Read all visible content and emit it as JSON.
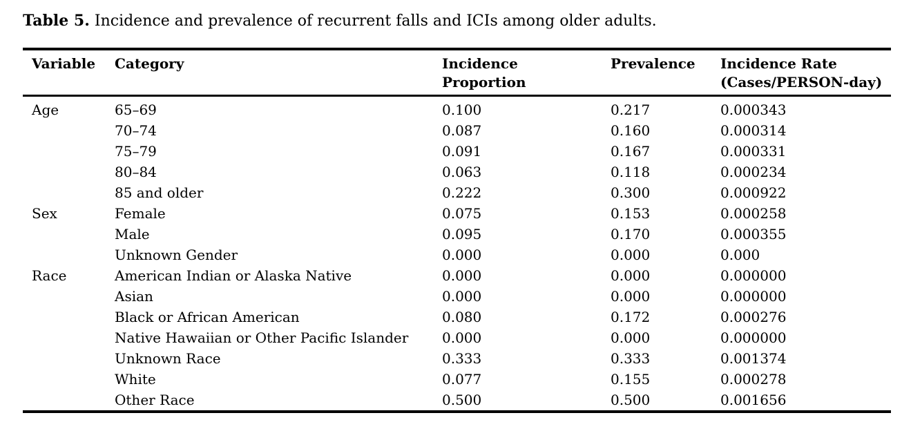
{
  "caption": {
    "label": "Table 5.",
    "text": " Incidence and prevalence of recurrent falls and ICIs among older adults."
  },
  "table": {
    "headers": {
      "variable": "Variable",
      "category": "Category",
      "incidence_proportion": "Incidence\nProportion",
      "prevalence": "Prevalence",
      "incidence_rate": "Incidence Rate\n(Cases/PERSON-day)"
    },
    "rows": [
      {
        "variable": "Age",
        "category": "65–69",
        "incidence_proportion": "0.100",
        "prevalence": "0.217",
        "incidence_rate": "0.000343"
      },
      {
        "variable": "",
        "category": "70–74",
        "incidence_proportion": "0.087",
        "prevalence": "0.160",
        "incidence_rate": "0.000314"
      },
      {
        "variable": "",
        "category": "75–79",
        "incidence_proportion": "0.091",
        "prevalence": "0.167",
        "incidence_rate": "0.000331"
      },
      {
        "variable": "",
        "category": "80–84",
        "incidence_proportion": "0.063",
        "prevalence": "0.118",
        "incidence_rate": "0.000234"
      },
      {
        "variable": "",
        "category": "85 and older",
        "incidence_proportion": "0.222",
        "prevalence": "0.300",
        "incidence_rate": "0.000922"
      },
      {
        "variable": "Sex",
        "category": "Female",
        "incidence_proportion": "0.075",
        "prevalence": "0.153",
        "incidence_rate": "0.000258"
      },
      {
        "variable": "",
        "category": "Male",
        "incidence_proportion": "0.095",
        "prevalence": "0.170",
        "incidence_rate": "0.000355"
      },
      {
        "variable": "",
        "category": "Unknown Gender",
        "incidence_proportion": "0.000",
        "prevalence": "0.000",
        "incidence_rate": "0.000"
      },
      {
        "variable": "Race",
        "category": "American Indian or Alaska Native",
        "incidence_proportion": "0.000",
        "prevalence": "0.000",
        "incidence_rate": "0.000000"
      },
      {
        "variable": "",
        "category": "Asian",
        "incidence_proportion": "0.000",
        "prevalence": "0.000",
        "incidence_rate": "0.000000"
      },
      {
        "variable": "",
        "category": "Black or African American",
        "incidence_proportion": "0.080",
        "prevalence": "0.172",
        "incidence_rate": "0.000276"
      },
      {
        "variable": "",
        "category": "Native Hawaiian or Other Pacific Islander",
        "incidence_proportion": "0.000",
        "prevalence": "0.000",
        "incidence_rate": "0.000000"
      },
      {
        "variable": "",
        "category": "Unknown Race",
        "incidence_proportion": "0.333",
        "prevalence": "0.333",
        "incidence_rate": "0.001374"
      },
      {
        "variable": "",
        "category": "White",
        "incidence_proportion": "0.077",
        "prevalence": "0.155",
        "incidence_rate": "0.000278"
      },
      {
        "variable": "",
        "category": "Other Race",
        "incidence_proportion": "0.500",
        "prevalence": "0.500",
        "incidence_rate": "0.001656"
      }
    ]
  }
}
